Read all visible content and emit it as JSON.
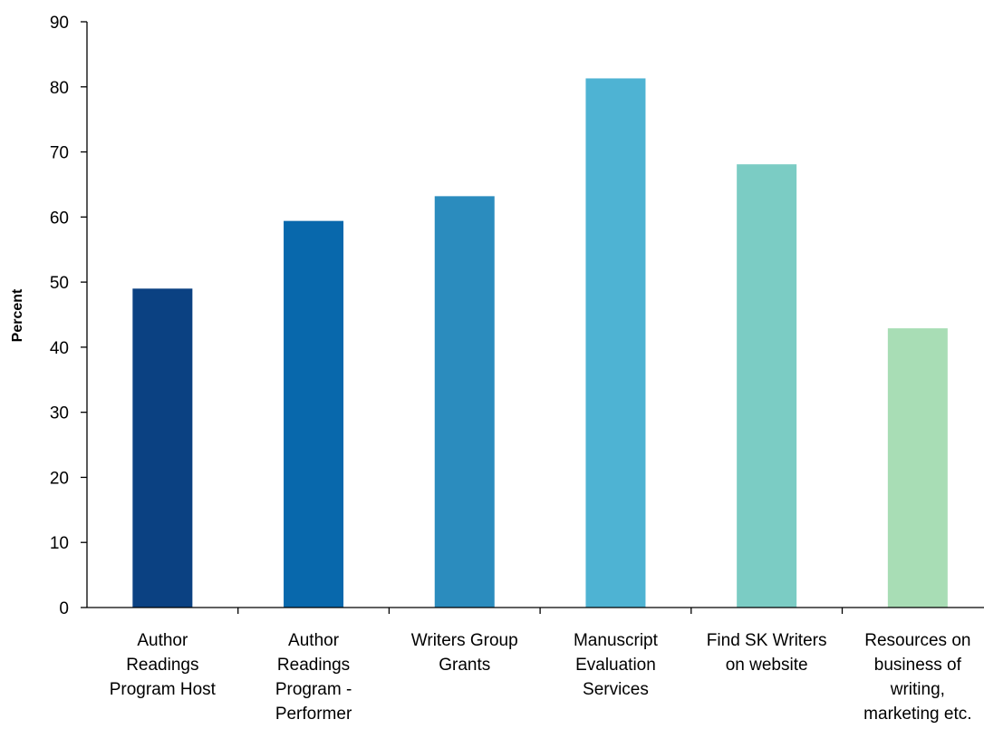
{
  "chart_data": {
    "type": "bar",
    "title": "",
    "xlabel": "",
    "ylabel": "Percent",
    "ylim": [
      0,
      90
    ],
    "yticks": [
      0,
      10,
      20,
      30,
      40,
      50,
      60,
      70,
      80,
      90
    ],
    "grid": false,
    "legend": "none",
    "categories": [
      [
        "Author",
        "Readings",
        "Program Host"
      ],
      [
        "Author",
        "Readings",
        "Program -",
        "Performer"
      ],
      [
        "Writers Group",
        "Grants"
      ],
      [
        "Manuscript",
        "Evaluation",
        "Services"
      ],
      [
        "Find SK Writers",
        "on website"
      ],
      [
        "Resources on",
        "business of",
        "writing,",
        "marketing etc."
      ]
    ],
    "values": [
      49,
      59.4,
      63.2,
      81.3,
      68.1,
      42.9
    ],
    "colors": [
      "#0b4182",
      "#0868ac",
      "#2b8cbe",
      "#4eb3d3",
      "#7bccc4",
      "#a8ddb5"
    ]
  }
}
